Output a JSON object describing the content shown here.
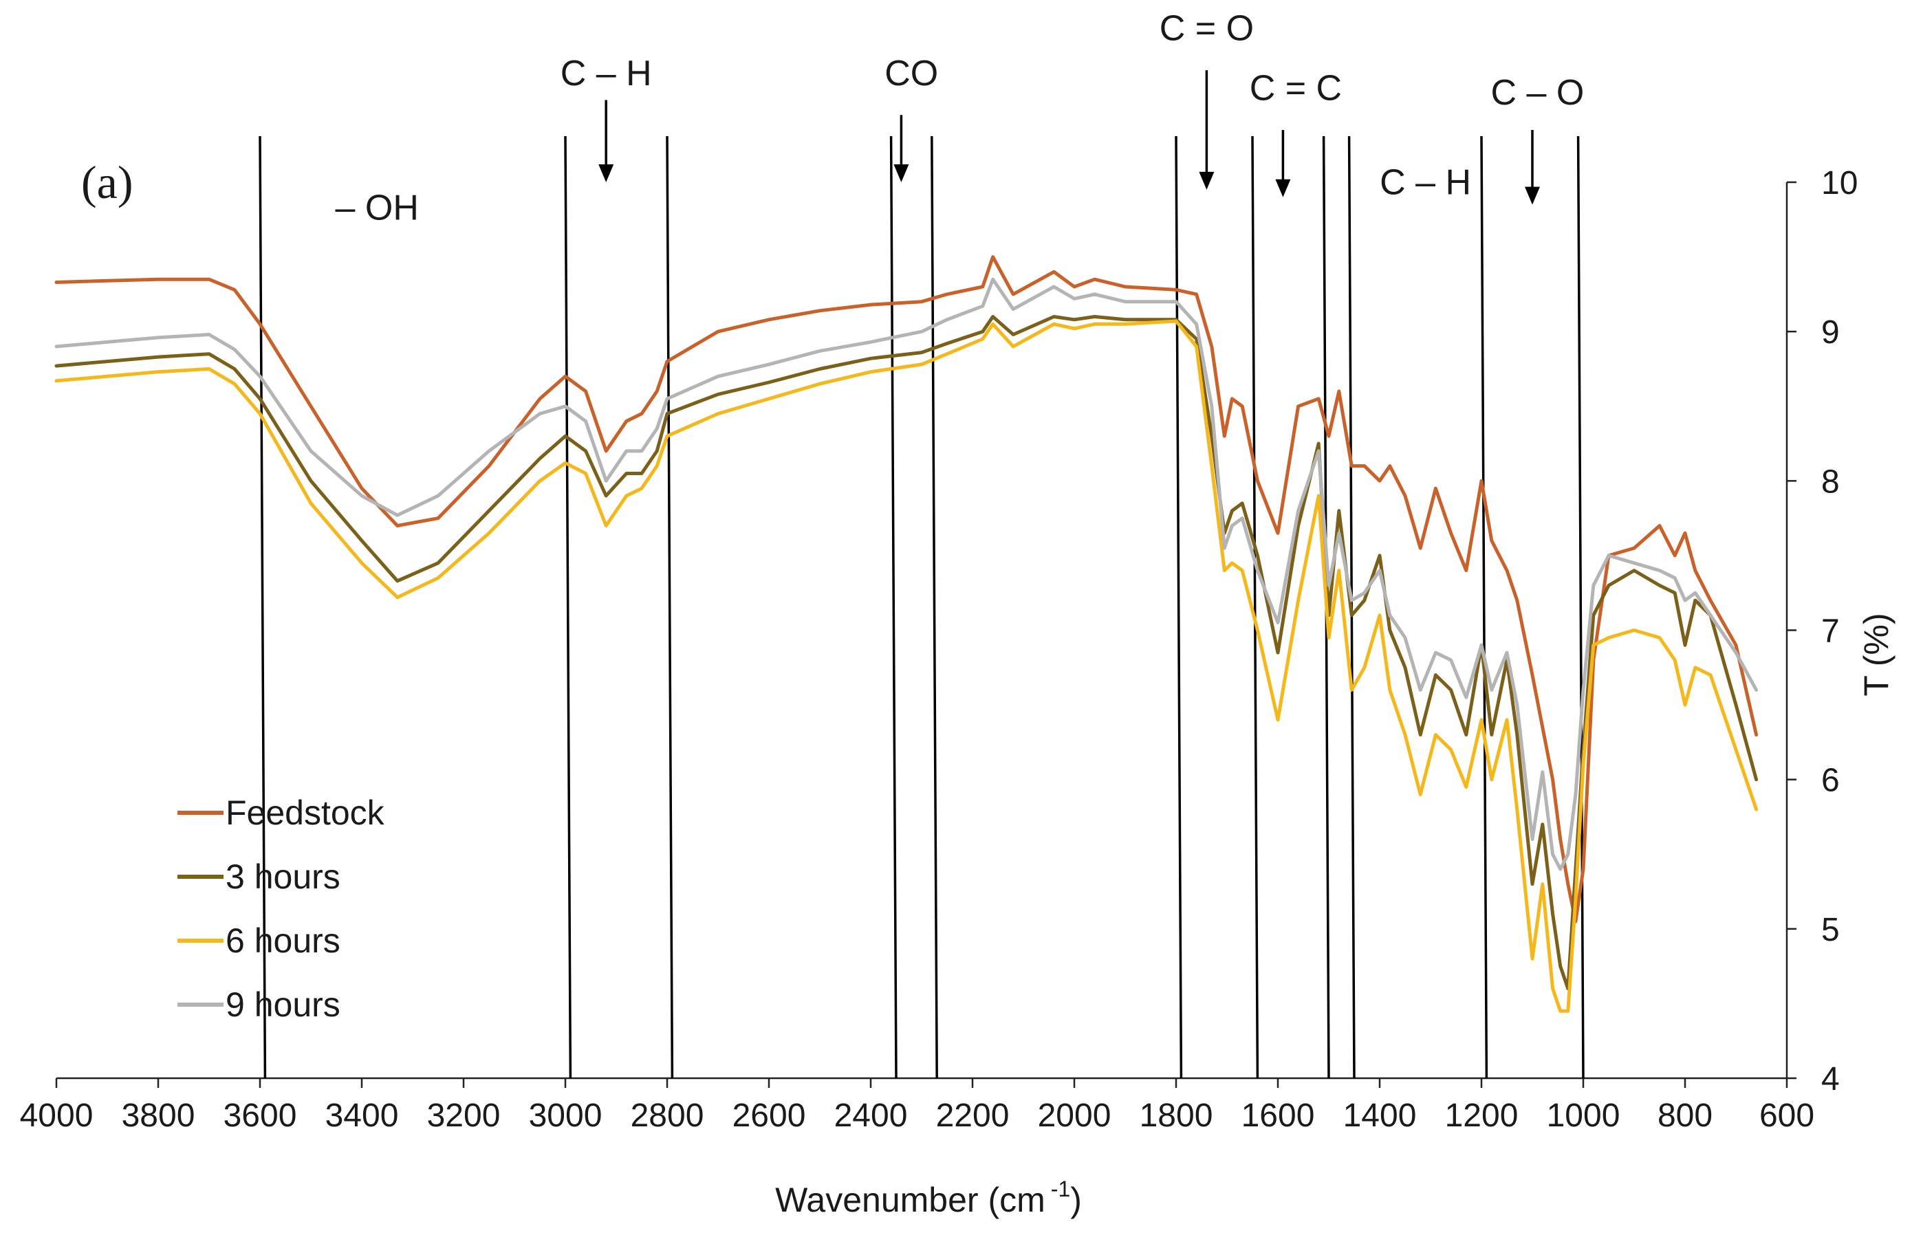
{
  "chart_data": {
    "type": "line",
    "panel_label": "(a)",
    "xlabel": "Wavenumber (cm",
    "xlabel_superscript": "-1",
    "xlabel_suffix": ")",
    "ylabel": "T (%)",
    "xlim": [
      4000,
      600
    ],
    "ylim": [
      4,
      10
    ],
    "x_ticks": [
      "4000",
      "3800",
      "3600",
      "3400",
      "3200",
      "3000",
      "2800",
      "2600",
      "2400",
      "2200",
      "2000",
      "1800",
      "1600",
      "1400",
      "1200",
      "1000",
      "800",
      "600"
    ],
    "y_ticks": [
      "4",
      "5",
      "6",
      "7",
      "8",
      "9",
      "10"
    ],
    "legend_position": "bottom-left",
    "series": [
      {
        "name": "Feedstock",
        "color": "#c8622a",
        "x": [
          4000,
          3900,
          3800,
          3700,
          3650,
          3600,
          3500,
          3400,
          3330,
          3250,
          3150,
          3050,
          3000,
          2960,
          2920,
          2880,
          2850,
          2820,
          2800,
          2700,
          2600,
          2500,
          2400,
          2300,
          2250,
          2180,
          2160,
          2120,
          2040,
          2000,
          1960,
          1900,
          1800,
          1760,
          1730,
          1705,
          1690,
          1670,
          1640,
          1600,
          1560,
          1520,
          1500,
          1480,
          1455,
          1430,
          1400,
          1380,
          1350,
          1320,
          1290,
          1260,
          1230,
          1200,
          1180,
          1150,
          1130,
          1100,
          1080,
          1060,
          1045,
          1030,
          1015,
          1000,
          980,
          950,
          900,
          850,
          820,
          800,
          780,
          750,
          700,
          660
        ],
        "values": [
          9.33,
          9.34,
          9.35,
          9.35,
          9.28,
          9.05,
          8.5,
          7.95,
          7.7,
          7.75,
          8.1,
          8.55,
          8.7,
          8.6,
          8.2,
          8.4,
          8.45,
          8.6,
          8.8,
          9.0,
          9.08,
          9.14,
          9.18,
          9.2,
          9.25,
          9.3,
          9.5,
          9.25,
          9.4,
          9.3,
          9.35,
          9.3,
          9.28,
          9.25,
          8.9,
          8.3,
          8.55,
          8.5,
          8.0,
          7.65,
          8.5,
          8.55,
          8.3,
          8.6,
          8.1,
          8.1,
          8.0,
          8.1,
          7.9,
          7.55,
          7.95,
          7.65,
          7.4,
          8.0,
          7.6,
          7.4,
          7.2,
          6.7,
          6.35,
          6.0,
          5.6,
          5.3,
          5.05,
          5.4,
          6.8,
          7.5,
          7.55,
          7.7,
          7.5,
          7.65,
          7.4,
          7.2,
          6.9,
          6.3
        ]
      },
      {
        "name": "3 hours",
        "color": "#7a6018",
        "x": [
          4000,
          3900,
          3800,
          3700,
          3650,
          3600,
          3500,
          3400,
          3330,
          3250,
          3150,
          3050,
          3000,
          2960,
          2920,
          2880,
          2850,
          2820,
          2800,
          2700,
          2600,
          2500,
          2400,
          2300,
          2250,
          2180,
          2160,
          2120,
          2040,
          2000,
          1960,
          1900,
          1800,
          1760,
          1730,
          1705,
          1690,
          1670,
          1640,
          1600,
          1560,
          1520,
          1500,
          1480,
          1455,
          1430,
          1400,
          1380,
          1350,
          1320,
          1290,
          1260,
          1230,
          1200,
          1180,
          1150,
          1130,
          1100,
          1080,
          1060,
          1045,
          1030,
          1015,
          1000,
          980,
          950,
          900,
          850,
          820,
          800,
          780,
          750,
          700,
          660
        ],
        "values": [
          8.77,
          8.8,
          8.83,
          8.85,
          8.75,
          8.55,
          8.0,
          7.6,
          7.33,
          7.45,
          7.8,
          8.15,
          8.3,
          8.2,
          7.9,
          8.05,
          8.05,
          8.2,
          8.45,
          8.58,
          8.66,
          8.75,
          8.82,
          8.86,
          8.92,
          9.0,
          9.1,
          8.98,
          9.1,
          9.08,
          9.1,
          9.08,
          9.08,
          8.95,
          8.3,
          7.65,
          7.8,
          7.85,
          7.5,
          6.85,
          7.7,
          8.25,
          7.1,
          7.8,
          7.1,
          7.2,
          7.5,
          7.0,
          6.75,
          6.3,
          6.7,
          6.6,
          6.3,
          6.9,
          6.3,
          6.8,
          6.3,
          5.3,
          5.7,
          5.1,
          4.75,
          4.6,
          5.4,
          6.2,
          7.1,
          7.3,
          7.4,
          7.3,
          7.25,
          6.9,
          7.2,
          7.1,
          6.5,
          6.0
        ]
      },
      {
        "name": "6 hours",
        "color": "#f4b81c",
        "x": [
          4000,
          3900,
          3800,
          3700,
          3650,
          3600,
          3500,
          3400,
          3330,
          3250,
          3150,
          3050,
          3000,
          2960,
          2920,
          2880,
          2850,
          2820,
          2800,
          2700,
          2600,
          2500,
          2400,
          2300,
          2250,
          2180,
          2160,
          2120,
          2040,
          2000,
          1960,
          1900,
          1800,
          1760,
          1730,
          1705,
          1690,
          1670,
          1640,
          1600,
          1560,
          1520,
          1500,
          1480,
          1455,
          1430,
          1400,
          1380,
          1350,
          1320,
          1290,
          1260,
          1230,
          1200,
          1180,
          1150,
          1130,
          1100,
          1080,
          1060,
          1045,
          1030,
          1015,
          1000,
          980,
          950,
          900,
          850,
          820,
          800,
          780,
          750,
          700,
          660
        ],
        "values": [
          8.67,
          8.7,
          8.73,
          8.75,
          8.65,
          8.45,
          7.85,
          7.45,
          7.22,
          7.35,
          7.65,
          8.0,
          8.12,
          8.05,
          7.7,
          7.9,
          7.95,
          8.1,
          8.3,
          8.45,
          8.55,
          8.65,
          8.73,
          8.78,
          8.85,
          8.95,
          9.05,
          8.9,
          9.05,
          9.02,
          9.05,
          9.05,
          9.07,
          8.9,
          8.1,
          7.4,
          7.45,
          7.4,
          7.0,
          6.4,
          7.2,
          7.9,
          6.95,
          7.4,
          6.6,
          6.75,
          7.1,
          6.6,
          6.3,
          5.9,
          6.3,
          6.2,
          5.95,
          6.4,
          6.0,
          6.4,
          5.8,
          4.8,
          5.3,
          4.6,
          4.45,
          4.45,
          5.2,
          6.1,
          6.9,
          6.95,
          7.0,
          6.95,
          6.8,
          6.5,
          6.75,
          6.7,
          6.2,
          5.8
        ]
      },
      {
        "name": "9 hours",
        "color": "#b4b4b4",
        "x": [
          4000,
          3900,
          3800,
          3700,
          3650,
          3600,
          3500,
          3400,
          3330,
          3250,
          3150,
          3050,
          3000,
          2960,
          2920,
          2880,
          2850,
          2820,
          2800,
          2700,
          2600,
          2500,
          2400,
          2300,
          2250,
          2180,
          2160,
          2120,
          2040,
          2000,
          1960,
          1900,
          1800,
          1760,
          1730,
          1705,
          1690,
          1670,
          1640,
          1600,
          1560,
          1520,
          1500,
          1480,
          1455,
          1430,
          1400,
          1380,
          1350,
          1320,
          1290,
          1260,
          1230,
          1200,
          1180,
          1150,
          1130,
          1100,
          1080,
          1060,
          1045,
          1030,
          1015,
          1000,
          980,
          950,
          900,
          850,
          820,
          800,
          780,
          750,
          700,
          660
        ],
        "values": [
          8.9,
          8.93,
          8.96,
          8.98,
          8.88,
          8.7,
          8.2,
          7.9,
          7.77,
          7.9,
          8.2,
          8.45,
          8.5,
          8.4,
          8.0,
          8.2,
          8.2,
          8.35,
          8.55,
          8.7,
          8.78,
          8.87,
          8.93,
          9.0,
          9.08,
          9.17,
          9.35,
          9.15,
          9.3,
          9.22,
          9.25,
          9.2,
          9.2,
          9.05,
          8.5,
          7.55,
          7.7,
          7.75,
          7.4,
          7.05,
          7.8,
          8.2,
          7.3,
          7.65,
          7.2,
          7.25,
          7.4,
          7.1,
          6.95,
          6.6,
          6.85,
          6.8,
          6.55,
          6.9,
          6.6,
          6.85,
          6.5,
          5.6,
          6.05,
          5.5,
          5.4,
          5.5,
          5.9,
          6.6,
          7.3,
          7.5,
          7.45,
          7.4,
          7.35,
          7.2,
          7.25,
          7.1,
          6.85,
          6.6
        ]
      }
    ],
    "annotations": {
      "vertical_lines": [
        [
          3600,
          3590
        ],
        [
          3000,
          2990
        ],
        [
          2800,
          2790
        ],
        [
          2360,
          2350
        ],
        [
          2280,
          2270
        ],
        [
          1800,
          1790
        ],
        [
          1650,
          1640
        ],
        [
          1510,
          1500
        ],
        [
          1460,
          1450
        ],
        [
          1200,
          1190
        ],
        [
          1010,
          1000
        ]
      ],
      "arrows": [
        {
          "x": 2920,
          "y_from": 10.55,
          "y_to": 10.0
        },
        {
          "x": 2340,
          "y_from": 10.45,
          "y_to": 10.0
        },
        {
          "x": 1740,
          "y_from": 10.75,
          "y_to": 9.95
        },
        {
          "x": 1590,
          "y_from": 10.35,
          "y_to": 9.9
        },
        {
          "x": 1100,
          "y_from": 10.35,
          "y_to": 9.85
        }
      ],
      "labels": [
        {
          "text": "– OH",
          "x": 3370,
          "y": 9.75
        },
        {
          "text": "C – H",
          "x": 2920,
          "y": 10.65
        },
        {
          "text": "CO",
          "x": 2320,
          "y": 10.65
        },
        {
          "text": "C = O",
          "x": 1740,
          "y": 10.95
        },
        {
          "text": "C = C",
          "x": 1565,
          "y": 10.55
        },
        {
          "text": "C – H",
          "x": 1310,
          "y": 9.92
        },
        {
          "text": "C – O",
          "x": 1090,
          "y": 10.52
        }
      ]
    }
  }
}
